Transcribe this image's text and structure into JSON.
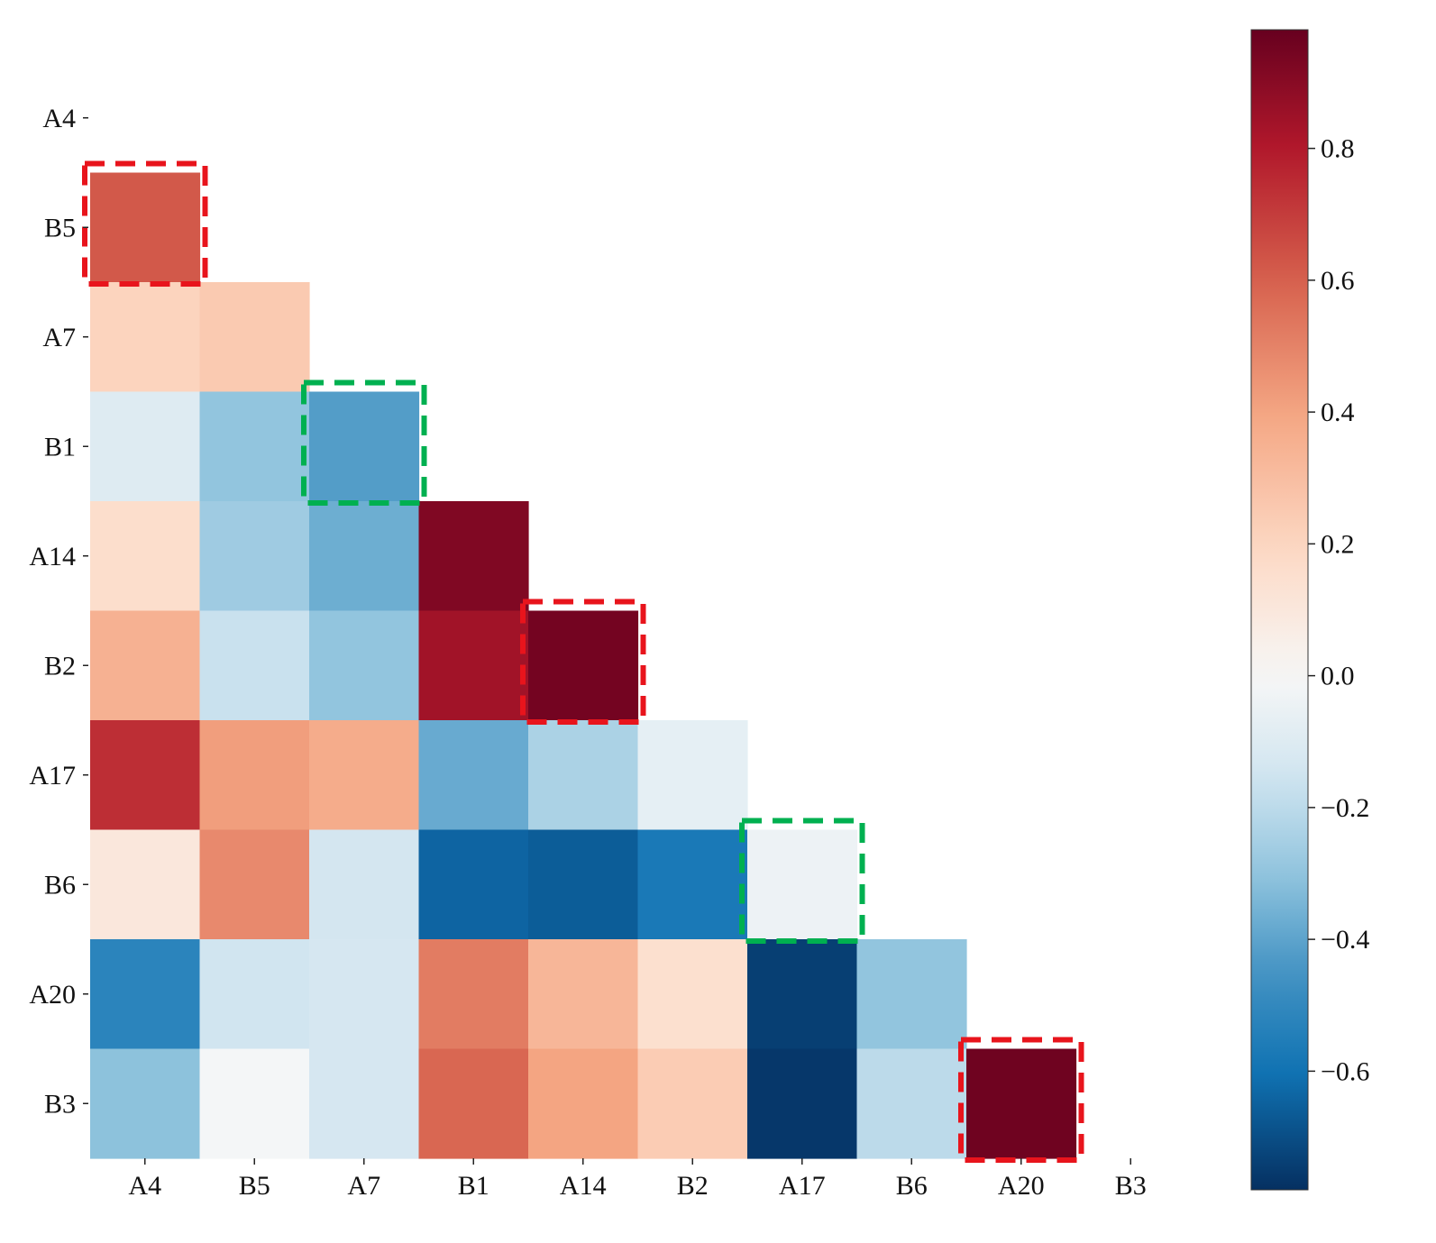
{
  "chart_data": {
    "type": "heatmap",
    "title": "",
    "xlabel": "",
    "ylabel": "",
    "variables": [
      "A4",
      "B5",
      "A7",
      "B1",
      "A14",
      "B2",
      "A17",
      "B6",
      "A20",
      "B3"
    ],
    "layout": "lower-triangle",
    "cells": [
      {
        "row": "B5",
        "col": "A4",
        "value": 0.62
      },
      {
        "row": "A7",
        "col": "A4",
        "value": 0.21
      },
      {
        "row": "A7",
        "col": "B5",
        "value": 0.25
      },
      {
        "row": "B1",
        "col": "A4",
        "value": -0.1
      },
      {
        "row": "B1",
        "col": "B5",
        "value": -0.3
      },
      {
        "row": "B1",
        "col": "A7",
        "value": -0.42
      },
      {
        "row": "A14",
        "col": "A4",
        "value": 0.16
      },
      {
        "row": "A14",
        "col": "B5",
        "value": -0.27
      },
      {
        "row": "A14",
        "col": "A7",
        "value": -0.37
      },
      {
        "row": "A14",
        "col": "B1",
        "value": 0.92
      },
      {
        "row": "B2",
        "col": "A4",
        "value": 0.35
      },
      {
        "row": "B2",
        "col": "B5",
        "value": -0.17
      },
      {
        "row": "B2",
        "col": "A7",
        "value": -0.3
      },
      {
        "row": "B2",
        "col": "B1",
        "value": 0.84
      },
      {
        "row": "B2",
        "col": "A14",
        "value": 0.95
      },
      {
        "row": "A17",
        "col": "A4",
        "value": 0.74
      },
      {
        "row": "A17",
        "col": "B5",
        "value": 0.42
      },
      {
        "row": "A17",
        "col": "A7",
        "value": 0.37
      },
      {
        "row": "A17",
        "col": "B1",
        "value": -0.38
      },
      {
        "row": "A17",
        "col": "A14",
        "value": -0.24
      },
      {
        "row": "A17",
        "col": "B2",
        "value": -0.07
      },
      {
        "row": "B6",
        "col": "A4",
        "value": 0.1
      },
      {
        "row": "B6",
        "col": "B5",
        "value": 0.48
      },
      {
        "row": "B6",
        "col": "A7",
        "value": -0.14
      },
      {
        "row": "B6",
        "col": "B1",
        "value": -0.64
      },
      {
        "row": "B6",
        "col": "A14",
        "value": -0.66
      },
      {
        "row": "B6",
        "col": "B2",
        "value": -0.57
      },
      {
        "row": "B6",
        "col": "A17",
        "value": -0.04
      },
      {
        "row": "A20",
        "col": "A4",
        "value": -0.52
      },
      {
        "row": "A20",
        "col": "B5",
        "value": -0.15
      },
      {
        "row": "A20",
        "col": "A7",
        "value": -0.13
      },
      {
        "row": "A20",
        "col": "B1",
        "value": 0.52
      },
      {
        "row": "A20",
        "col": "A14",
        "value": 0.33
      },
      {
        "row": "A20",
        "col": "B2",
        "value": 0.15
      },
      {
        "row": "A20",
        "col": "A17",
        "value": -0.74
      },
      {
        "row": "A20",
        "col": "B6",
        "value": -0.3
      },
      {
        "row": "B3",
        "col": "A4",
        "value": -0.31
      },
      {
        "row": "B3",
        "col": "B5",
        "value": -0.01
      },
      {
        "row": "B3",
        "col": "A7",
        "value": -0.13
      },
      {
        "row": "B3",
        "col": "B1",
        "value": 0.58
      },
      {
        "row": "B3",
        "col": "A14",
        "value": 0.4
      },
      {
        "row": "B3",
        "col": "B2",
        "value": 0.24
      },
      {
        "row": "B3",
        "col": "A17",
        "value": -0.76
      },
      {
        "row": "B3",
        "col": "B6",
        "value": -0.2
      },
      {
        "row": "B3",
        "col": "A20",
        "value": 0.96
      }
    ],
    "highlights": [
      {
        "row": "B5",
        "col": "A4",
        "color": "red"
      },
      {
        "row": "B1",
        "col": "A7",
        "color": "green"
      },
      {
        "row": "B2",
        "col": "A14",
        "color": "red"
      },
      {
        "row": "B6",
        "col": "A17",
        "color": "green"
      },
      {
        "row": "B3",
        "col": "A20",
        "color": "red"
      }
    ],
    "colorbar": {
      "range": [
        -0.78,
        0.98
      ],
      "ticks": [
        -0.6,
        -0.4,
        -0.2,
        0.0,
        0.2,
        0.4,
        0.6,
        0.8
      ],
      "tick_labels": [
        "−0.6",
        "−0.4",
        "−0.2",
        "0.0",
        "0.2",
        "0.4",
        "0.6",
        "0.8"
      ],
      "colormap": "RdBu_r"
    }
  },
  "colors": {
    "highlight_red": "#e8141c",
    "highlight_green": "#00b050"
  }
}
